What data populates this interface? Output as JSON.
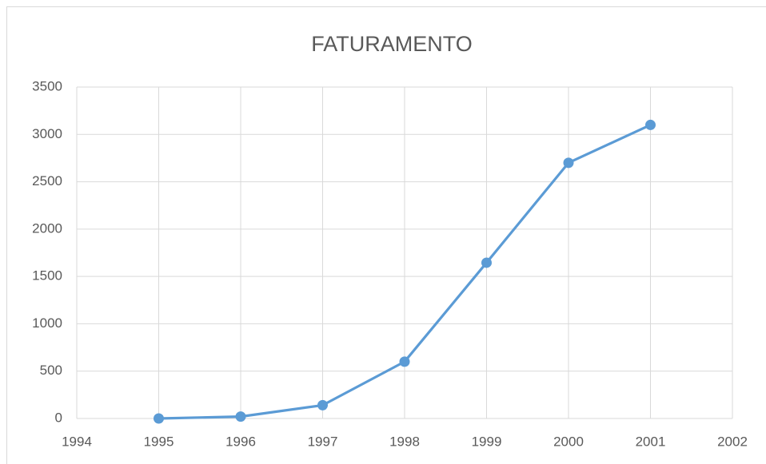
{
  "chart_data": {
    "type": "line",
    "title": "FATURAMENTO",
    "x": [
      1995,
      1996,
      1997,
      1998,
      1999,
      2000,
      2001
    ],
    "series": [
      {
        "name": "FATURAMENTO",
        "color": "#5b9bd5",
        "values": [
          0,
          20,
          140,
          600,
          1645,
          2700,
          3100
        ]
      }
    ],
    "xlim": [
      1994,
      2002
    ],
    "xticks": [
      1994,
      1995,
      1996,
      1997,
      1998,
      1999,
      2000,
      2001,
      2002
    ],
    "ylim": [
      0,
      3500
    ],
    "yticks": [
      0,
      500,
      1000,
      1500,
      2000,
      2500,
      3000,
      3500
    ],
    "grid": true,
    "markers": true
  }
}
